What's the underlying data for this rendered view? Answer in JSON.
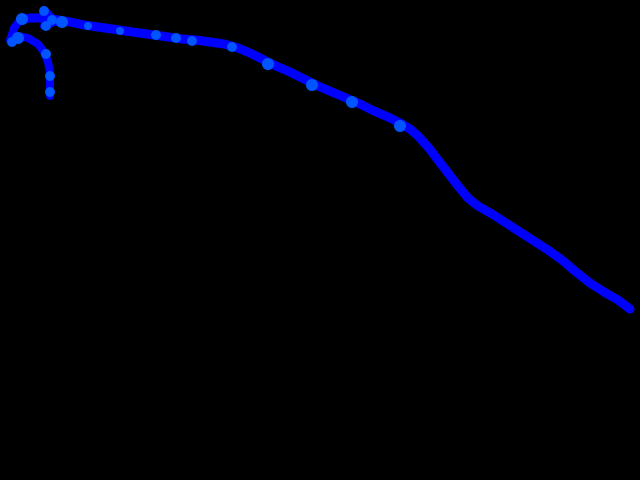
{
  "background_color": "#000000",
  "trail_color": "#0000ff",
  "highlight_color": "#0055ff"
}
